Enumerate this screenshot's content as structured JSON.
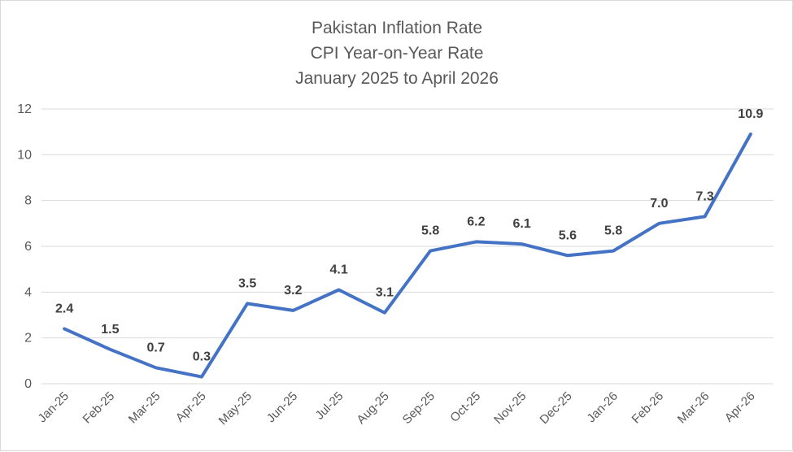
{
  "chart_data": {
    "type": "line",
    "title": [
      "Pakistan Inflation Rate",
      "CPI Year-on-Year Rate",
      "January 2025 to April 2026"
    ],
    "categories": [
      "Jan-25",
      "Feb-25",
      "Mar-25",
      "Apr-25",
      "May-25",
      "Jun-25",
      "Jul-25",
      "Aug-25",
      "Sep-25",
      "Oct-25",
      "Nov-25",
      "Dec-25",
      "Jan-26",
      "Feb-26",
      "Mar-26",
      "Apr-26"
    ],
    "series": [
      {
        "values": [
          2.4,
          1.5,
          0.7,
          0.3,
          3.5,
          3.2,
          4.1,
          3.1,
          5.8,
          6.2,
          6.1,
          5.6,
          5.8,
          7.0,
          7.3,
          10.9
        ],
        "labels": [
          "2.4",
          "1.5",
          "0.7",
          "0.3",
          "3.5",
          "3.2",
          "4.1",
          "3.1",
          "5.8",
          "6.2",
          "6.1",
          "5.6",
          "5.8",
          "7.0",
          "7.3",
          "10.9"
        ],
        "color": "#4472c4"
      }
    ],
    "yticks": [
      "0",
      "2",
      "4",
      "6",
      "8",
      "10",
      "12"
    ],
    "ylim": [
      0,
      12
    ],
    "grid": true,
    "legend": "none",
    "xlabel": "",
    "ylabel": ""
  }
}
